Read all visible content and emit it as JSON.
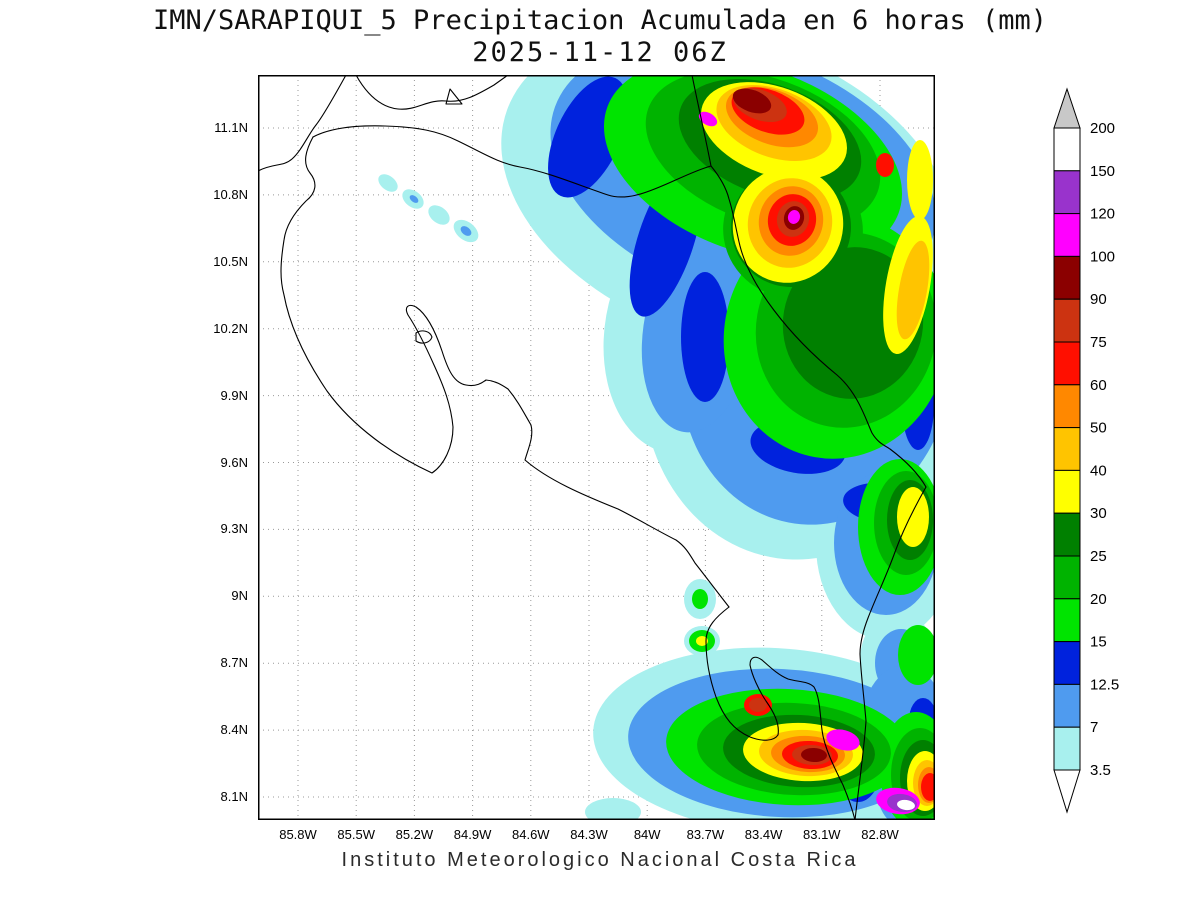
{
  "title": {
    "line1": "IMN/SARAPIQUI_5 Precipitacion Acumulada en 6 horas (mm)",
    "line2": "2025-11-12 06Z"
  },
  "footer": {
    "text": "Instituto Meteorologico Nacional Costa Rica"
  },
  "axes": {
    "lat_ticks": [
      "11.1N",
      "10.8N",
      "10.5N",
      "10.2N",
      "9.9N",
      "9.6N",
      "9.3N",
      "9N",
      "8.7N",
      "8.4N",
      "8.1N"
    ],
    "lon_ticks": [
      "85.8W",
      "85.5W",
      "85.2W",
      "84.9W",
      "84.6W",
      "84.3W",
      "84W",
      "83.7W",
      "83.4W",
      "83.1W",
      "82.8W"
    ]
  },
  "colorbar": {
    "labels": [
      "200",
      "150",
      "120",
      "100",
      "90",
      "75",
      "60",
      "50",
      "40",
      "30",
      "25",
      "20",
      "15",
      "12.5",
      "7",
      "3.5"
    ],
    "over_color": "#c8c8c8",
    "under_color": "#ffffff",
    "segments_top_to_bottom": [
      {
        "range": "150-200",
        "color": "#ffffff"
      },
      {
        "range": "120-150",
        "color": "#9933cc"
      },
      {
        "range": "100-120",
        "color": "#ff00ff"
      },
      {
        "range": "90-100",
        "color": "#8b0000"
      },
      {
        "range": "75-90",
        "color": "#cc3311"
      },
      {
        "range": "60-75",
        "color": "#ff0f00"
      },
      {
        "range": "50-60",
        "color": "#ff8800"
      },
      {
        "range": "40-50",
        "color": "#ffc400"
      },
      {
        "range": "30-40",
        "color": "#ffff00"
      },
      {
        "range": "25-30",
        "color": "#008000"
      },
      {
        "range": "20-25",
        "color": "#00b300"
      },
      {
        "range": "15-20",
        "color": "#00e400"
      },
      {
        "range": "12.5-15",
        "color": "#0022dd"
      },
      {
        "range": "7-12.5",
        "color": "#4f9bef"
      },
      {
        "range": "3.5-7",
        "color": "#a8f0ee"
      }
    ],
    "level_colors": {
      "3.5": "#a8f0ee",
      "7": "#4f9bef",
      "12.5": "#0022dd",
      "15": "#00e400",
      "20": "#00b300",
      "25": "#008000",
      "30": "#ffff00",
      "40": "#ffc400",
      "50": "#ff8800",
      "60": "#ff0f00",
      "75": "#cc3311",
      "90": "#8b0000",
      "100": "#ff00ff",
      "120": "#9933cc",
      "150": "#ffffff"
    }
  },
  "chart_data": {
    "type": "heatmap",
    "title": "IMN/SARAPIQUI_5 Precipitacion Acumulada en 6 horas (mm)",
    "valid_time": "2025-11-12 06Z",
    "units": "mm",
    "x_ticks": [
      "85.8W",
      "85.5W",
      "85.2W",
      "84.9W",
      "84.6W",
      "84.3W",
      "84W",
      "83.7W",
      "83.4W",
      "83.1W",
      "82.8W"
    ],
    "y_ticks": [
      "11.1N",
      "10.8N",
      "10.5N",
      "10.2N",
      "9.9N",
      "9.6N",
      "9.3N",
      "9N",
      "8.7N",
      "8.4N",
      "8.1N"
    ],
    "levels_mm": [
      3.5,
      7,
      12.5,
      15,
      20,
      25,
      30,
      40,
      50,
      60,
      75,
      90,
      100,
      120,
      150,
      200
    ],
    "legend_position": "right",
    "features": [
      "Broad rain shield 3.5-30 mm over the Caribbean/northeastern half of the domain",
      "Primary maximum greater than 100 mm near 83.7W 11.2N on the northern Caribbean coast",
      "Secondary maximum greater than 100 mm near 83.3W 10.6N",
      "Scattered small 3.5-12.5 mm cells near 85.2W-84.9W 10.6-10.8N",
      "Southern Pacific cluster along 8.1-8.5N with cores exceeding 100-150 mm near 82.8W",
      "Dry (below 3.5 mm) over the northwest Pacific, Nicoya and Central Valley"
    ]
  },
  "map": {
    "coast_paths": [
      "M 0 96 C 15 88 25 92 34 84 C 44 75 50 60 58 50 C 66 40 78 18 88 0",
      "M 98 0 C 108 18 122 32 140 34 C 158 36 170 24 188 26 C 206 28 222 18 236 10 L 250 0",
      "M 192 14 L 204 29 L 188 29 Z",
      "M 55 62 C 70 54 95 50 127 51 C 160 52 180 56 200 66 C 225 78 240 88 262 92 C 290 97 320 110 350 120 C 380 130 420 100 453 91",
      "M 453 91 C 447 60 440 30 434 0",
      "M 453 91 C 462 102 468 112 471 124 C 476 140 478 155 482 171 C 492 210 530 260 579 300 C 600 318 608 345 614 358 C 620 368 626 370 632 374 C 648 386 660 398 668 412",
      "M 668 412 C 655 435 645 455 637 477 C 628 502 618 522 610 543 C 605 556 602 568 602 579 C 603 600 606 622 608 646 C 606 675 601 710 597 745",
      "M 55 62 C 48 75 44 88 52 98 C 60 108 58 118 48 126 C 38 136 28 150 26 165 C 22 190 22 205 26 220 C 32 252 48 285 69 316 C 95 352 135 380 174 398 C 186 390 195 372 195 352 C 193 330 186 312 176 290 C 168 272 158 252 150 240 C 146 232 150 228 158 232 C 170 240 178 258 184 276 C 190 295 196 308 208 310 C 218 312 224 308 228 305 C 238 306 244 310 250 314 C 260 326 266 338 273 350 C 276 362 270 374 267 385 C 290 405 325 420 360 434 C 380 444 400 456 418 465 C 428 472 432 480 437 488 C 448 502 460 518 471 532",
      "M 471 532 C 458 542 448 552 448 566 C 448 585 452 605 458 622 C 466 643 476 655 492 662 C 505 667 516 666 520 660 C 522 648 515 636 508 626 C 500 614 494 600 492 590 C 492 582 497 580 504 585 C 512 592 520 600 530 604 C 540 607 550 606 556 612 C 562 622 562 640 564 655 C 566 672 576 692 585 710 C 590 722 594 733 597 745",
      "M 158 258 C 164 254 172 256 174 262 C 172 268 164 270 158 266 Z"
    ],
    "field_blobs": [
      [
        3.5,
        470,
        115,
        235,
        150,
        20
      ],
      [
        3.5,
        545,
        300,
        160,
        185,
        8
      ],
      [
        3.5,
        432,
        255,
        85,
        125,
        10
      ],
      [
        3.5,
        628,
        470,
        70,
        95,
        0
      ],
      [
        3.5,
        640,
        585,
        38,
        48,
        0
      ],
      [
        3.5,
        130,
        108,
        11,
        7,
        38
      ],
      [
        3.5,
        155,
        124,
        12,
        8,
        38
      ],
      [
        3.5,
        181,
        140,
        12,
        8,
        38
      ],
      [
        3.5,
        208,
        156,
        14,
        9,
        38
      ],
      [
        3.5,
        515,
        665,
        180,
        92,
        3
      ],
      [
        3.5,
        642,
        655,
        55,
        85,
        0
      ],
      [
        3.5,
        660,
        718,
        50,
        45,
        0
      ],
      [
        3.5,
        442,
        524,
        16,
        20,
        0
      ],
      [
        3.5,
        444,
        566,
        18,
        15,
        0
      ],
      [
        3.5,
        388,
        692,
        20,
        13,
        0
      ],
      [
        3.5,
        355,
        737,
        28,
        14,
        0
      ],
      [
        7,
        485,
        100,
        200,
        122,
        20
      ],
      [
        7,
        558,
        295,
        135,
        155,
        8
      ],
      [
        7,
        440,
        258,
        55,
        100,
        8
      ],
      [
        7,
        628,
        468,
        52,
        72,
        0
      ],
      [
        7,
        643,
        588,
        26,
        34,
        0
      ],
      [
        7,
        156,
        124,
        5,
        3,
        38
      ],
      [
        7,
        208,
        156,
        6,
        4,
        38
      ],
      [
        7,
        522,
        668,
        152,
        74,
        3
      ],
      [
        7,
        646,
        662,
        45,
        72,
        0
      ],
      [
        7,
        662,
        720,
        42,
        38,
        0
      ],
      [
        7,
        444,
        566,
        12,
        10,
        0
      ],
      [
        12.5,
        330,
        62,
        32,
        65,
        25
      ],
      [
        12.5,
        408,
        165,
        28,
        80,
        18
      ],
      [
        12.5,
        447,
        262,
        24,
        65,
        0
      ],
      [
        12.5,
        540,
        372,
        48,
        26,
        10
      ],
      [
        12.5,
        625,
        428,
        40,
        20,
        5
      ],
      [
        12.5,
        660,
        330,
        16,
        45,
        0
      ],
      [
        12.5,
        455,
        655,
        18,
        30,
        0
      ],
      [
        12.5,
        600,
        695,
        22,
        32,
        0
      ],
      [
        12.5,
        665,
        645,
        14,
        22,
        0
      ],
      [
        15,
        495,
        85,
        155,
        92,
        20
      ],
      [
        15,
        578,
        262,
        112,
        122,
        10
      ],
      [
        15,
        642,
        452,
        42,
        68,
        0
      ],
      [
        15,
        660,
        580,
        20,
        30,
        0
      ],
      [
        15,
        505,
        318,
        20,
        16,
        0
      ],
      [
        15,
        530,
        672,
        122,
        58,
        3
      ],
      [
        15,
        658,
        695,
        36,
        58,
        0
      ],
      [
        15,
        442,
        524,
        8,
        10,
        0
      ],
      [
        15,
        444,
        566,
        13,
        11,
        0
      ],
      [
        20,
        505,
        75,
        122,
        72,
        20
      ],
      [
        20,
        588,
        255,
        90,
        98,
        10
      ],
      [
        20,
        648,
        448,
        32,
        52,
        0
      ],
      [
        20,
        535,
        155,
        70,
        68,
        15
      ],
      [
        20,
        536,
        674,
        97,
        46,
        3
      ],
      [
        20,
        662,
        700,
        29,
        47,
        0
      ],
      [
        25,
        512,
        65,
        95,
        55,
        20
      ],
      [
        25,
        595,
        248,
        70,
        76,
        10
      ],
      [
        25,
        652,
        445,
        23,
        40,
        0
      ],
      [
        25,
        533,
        152,
        60,
        60,
        15
      ],
      [
        25,
        541,
        676,
        76,
        36,
        3
      ],
      [
        25,
        665,
        703,
        23,
        38,
        0
      ],
      [
        30,
        516,
        56,
        76,
        44,
        20
      ],
      [
        30,
        530,
        150,
        55,
        58,
        15
      ],
      [
        30,
        650,
        210,
        22,
        70,
        10
      ],
      [
        30,
        655,
        442,
        16,
        30,
        0
      ],
      [
        30,
        662,
        105,
        13,
        40,
        0
      ],
      [
        30,
        545,
        677,
        60,
        29,
        3
      ],
      [
        30,
        667,
        706,
        18,
        30,
        0
      ],
      [
        30,
        444,
        566,
        6,
        5,
        0
      ],
      [
        40,
        516,
        48,
        60,
        34,
        20
      ],
      [
        40,
        532,
        148,
        42,
        45,
        15
      ],
      [
        40,
        655,
        215,
        14,
        50,
        10
      ],
      [
        40,
        548,
        678,
        47,
        23,
        3
      ],
      [
        40,
        669,
        708,
        14,
        23,
        0
      ],
      [
        50,
        514,
        42,
        48,
        27,
        20
      ],
      [
        50,
        533,
        146,
        32,
        35,
        15
      ],
      [
        50,
        550,
        679,
        37,
        18,
        3
      ],
      [
        50,
        671,
        710,
        11,
        18,
        0
      ],
      [
        60,
        510,
        36,
        38,
        21,
        20
      ],
      [
        60,
        534,
        145,
        24,
        26,
        15
      ],
      [
        60,
        627,
        90,
        9,
        12,
        0
      ],
      [
        60,
        552,
        680,
        28,
        14,
        3
      ],
      [
        60,
        500,
        630,
        14,
        11,
        0
      ],
      [
        60,
        672,
        712,
        9,
        14,
        0
      ],
      [
        75,
        502,
        30,
        28,
        15,
        20
      ],
      [
        75,
        535,
        144,
        16,
        18,
        15
      ],
      [
        75,
        554,
        680,
        20,
        10,
        3
      ],
      [
        75,
        500,
        630,
        9,
        7,
        0
      ],
      [
        90,
        494,
        26,
        20,
        11,
        20
      ],
      [
        90,
        536,
        143,
        10,
        12,
        15
      ],
      [
        90,
        556,
        680,
        13,
        7,
        3
      ],
      [
        100,
        450,
        44,
        10,
        6,
        30
      ],
      [
        100,
        536,
        142,
        6,
        7,
        15
      ],
      [
        100,
        585,
        665,
        17,
        10,
        15
      ],
      [
        100,
        640,
        726,
        22,
        13,
        8
      ],
      [
        120,
        644,
        728,
        15,
        9,
        8
      ],
      [
        150,
        648,
        730,
        9,
        5,
        8
      ]
    ]
  }
}
